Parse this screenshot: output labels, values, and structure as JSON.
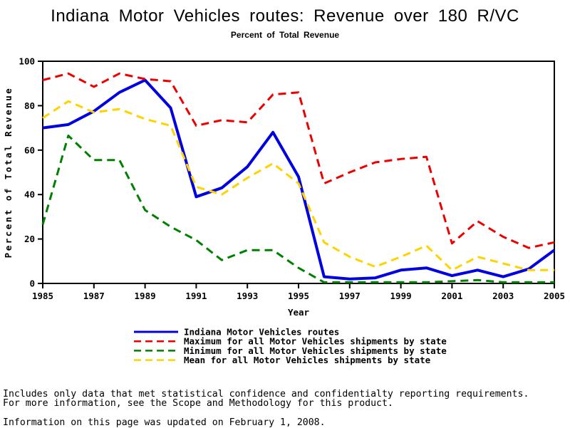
{
  "title": "Indiana Motor Vehicles routes: Revenue over 180 R/VC",
  "subtitle": "Percent of Total Revenue",
  "chart_data": {
    "type": "line",
    "x": [
      1985,
      1986,
      1987,
      1988,
      1989,
      1990,
      1991,
      1992,
      1993,
      1994,
      1995,
      1996,
      1997,
      1998,
      1999,
      2000,
      2001,
      2002,
      2003,
      2004,
      2005
    ],
    "xticks": [
      1985,
      1987,
      1989,
      1991,
      1993,
      1995,
      1997,
      1999,
      2001,
      2003,
      2005
    ],
    "yticks": [
      0,
      20,
      40,
      60,
      80,
      100
    ],
    "ylim": [
      0,
      100
    ],
    "xlabel": "Year",
    "ylabel": "Percent of Total Revenue",
    "grid": false,
    "legend_position": "bottom",
    "series": [
      {
        "label": "Indiana Motor Vehicles routes",
        "color": "#0000E0",
        "style": "solid",
        "values": [
          70,
          71.5,
          77.5,
          86,
          91.5,
          79,
          39,
          43,
          52.5,
          68,
          48,
          3,
          2,
          2.5,
          6,
          7,
          3.5,
          6,
          3,
          6.5,
          15
        ]
      },
      {
        "label": "Maximum for all Motor Vehicles shipments by state",
        "color": "#EE0000",
        "style": "dashed",
        "values": [
          91.5,
          94.5,
          88.5,
          94.5,
          92,
          91,
          71,
          73.5,
          72.5,
          85,
          86,
          45,
          50,
          54.5,
          56,
          57,
          18,
          28,
          21,
          16,
          18.5
        ]
      },
      {
        "label": "Minimum for all Motor Vehicles shipments by state",
        "color": "#008000",
        "style": "dashed",
        "values": [
          26.5,
          66.5,
          55.5,
          55.5,
          33,
          25.5,
          19.5,
          10.5,
          15,
          15,
          7,
          0.5,
          0.5,
          0.5,
          0.5,
          0.5,
          1,
          1.5,
          0.5,
          0.5,
          0.5
        ]
      },
      {
        "label": "Mean for all Motor Vehicles shipments by state",
        "color": "#FFD300",
        "style": "dashed",
        "values": [
          74.5,
          82,
          77,
          78.5,
          74,
          71,
          43.5,
          40,
          47.5,
          54,
          45,
          18.5,
          12,
          7.5,
          12,
          17,
          6,
          12,
          9,
          6,
          6
        ]
      }
    ]
  },
  "footer": {
    "line1": "Includes only data that met statistical confidence and confidentialty reporting requirements.",
    "line2": "For more information, see the Scope and Methodology for this product.",
    "line3": "Information on this page was updated on February 1, 2008."
  }
}
